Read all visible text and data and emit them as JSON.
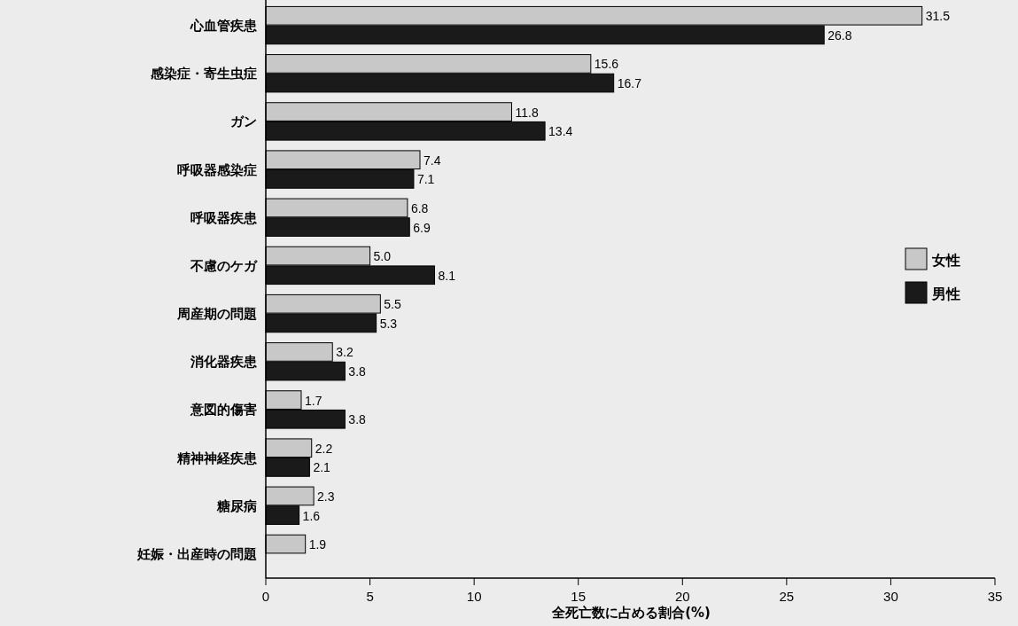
{
  "chart_data": {
    "type": "bar",
    "orientation": "horizontal",
    "xlabel": "全死亡数に占める割合(%)",
    "categories": [
      "心血管疾患",
      "感染症・寄生虫症",
      "ガン",
      "呼吸器感染症",
      "呼吸器疾患",
      "不慮のケガ",
      "周産期の問題",
      "消化器疾患",
      "意図的傷害",
      "精神神経疾患",
      "糖尿病",
      "妊娠・出産時の問題"
    ],
    "series": [
      {
        "name": "女性",
        "color": "#c8c8c8",
        "values": [
          31.5,
          15.6,
          11.8,
          7.4,
          6.8,
          5.0,
          5.5,
          3.2,
          1.7,
          2.2,
          2.3,
          1.9
        ],
        "value_labels": [
          "31.5",
          "15.6",
          "11.8",
          "7.4",
          "6.8",
          "5.0",
          "5.5",
          "3.2",
          "1.7",
          "2.2",
          "2.3",
          "1.9"
        ]
      },
      {
        "name": "男性",
        "color": "#1a1a1a",
        "values": [
          26.8,
          16.7,
          13.4,
          7.1,
          6.9,
          8.1,
          5.3,
          3.8,
          3.8,
          2.1,
          1.6,
          null
        ],
        "value_labels": [
          "26.8",
          "16.7",
          "13.4",
          "7.1",
          "6.9",
          "8.1",
          "5.3",
          "3.8",
          "3.8",
          "2.1",
          "1.6",
          null
        ]
      }
    ],
    "xlim": [
      0,
      35
    ],
    "xticks": [
      0,
      5,
      10,
      15,
      20,
      25,
      30,
      35
    ],
    "legend": "right"
  }
}
